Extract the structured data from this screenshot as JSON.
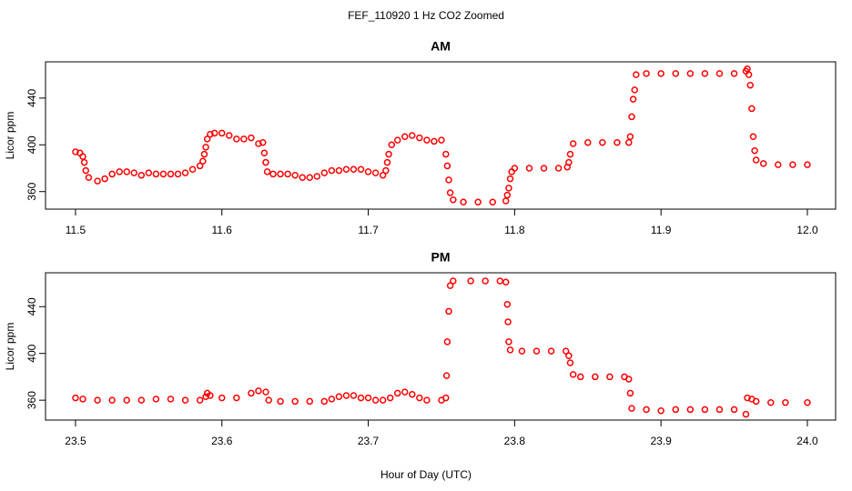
{
  "title": "FEF_110920  1 Hz CO2 Zoomed",
  "xlabel": "Hour of Day (UTC)",
  "chart_data": [
    {
      "type": "scatter",
      "title": "AM",
      "ylabel": "Licor ppm",
      "color": "#ff0000",
      "xlim": [
        11.4795,
        12.0193
      ],
      "ylim": [
        345,
        471
      ],
      "xticks": [
        11.5,
        11.6,
        11.7,
        11.8,
        11.9,
        {
          "value": 12,
          "label": "12.0"
        }
      ],
      "yticks": [
        360,
        400,
        440
      ],
      "x": [
        11.5,
        11.503,
        11.505,
        11.506,
        11.507,
        11.509,
        11.515,
        11.52,
        11.525,
        11.53,
        11.535,
        11.54,
        11.545,
        11.55,
        11.555,
        11.56,
        11.565,
        11.57,
        11.575,
        11.58,
        11.585,
        11.587,
        11.588,
        11.589,
        11.59,
        11.592,
        11.595,
        11.6,
        11.605,
        11.61,
        11.615,
        11.62,
        11.625,
        11.628,
        11.629,
        11.63,
        11.631,
        11.635,
        11.64,
        11.645,
        11.65,
        11.655,
        11.66,
        11.665,
        11.67,
        11.675,
        11.68,
        11.685,
        11.69,
        11.695,
        11.7,
        11.705,
        11.71,
        11.712,
        11.713,
        11.714,
        11.716,
        11.72,
        11.725,
        11.73,
        11.735,
        11.74,
        11.745,
        11.75,
        11.753,
        11.754,
        11.755,
        11.756,
        11.758,
        11.765,
        11.775,
        11.785,
        11.794,
        11.795,
        11.796,
        11.797,
        11.798,
        11.8,
        11.81,
        11.82,
        11.83,
        11.836,
        11.837,
        11.838,
        11.84,
        11.85,
        11.86,
        11.87,
        11.878,
        11.879,
        11.88,
        11.881,
        11.882,
        11.883,
        11.89,
        11.9,
        11.91,
        11.92,
        11.93,
        11.94,
        11.95,
        11.958,
        11.959,
        11.96,
        11.961,
        11.962,
        11.963,
        11.964,
        11.965,
        11.97,
        11.98,
        11.99,
        12.0
      ],
      "values": [
        394,
        393,
        390,
        385,
        378,
        372,
        369,
        371,
        375,
        377,
        377,
        376,
        374,
        376,
        375,
        375,
        375,
        375,
        376,
        379,
        382,
        386,
        392,
        398,
        405,
        409,
        410,
        410,
        408,
        405,
        405,
        406,
        401,
        402,
        393,
        385,
        377,
        375,
        375,
        375,
        374,
        372,
        372,
        373,
        376,
        378,
        378,
        379,
        379,
        379,
        377,
        376,
        374,
        378,
        385,
        392,
        400,
        404,
        407,
        408,
        406,
        404,
        403,
        404,
        392,
        382,
        370,
        359,
        353,
        351,
        351,
        351,
        352,
        357,
        363,
        371,
        377,
        380,
        380,
        380,
        380,
        381,
        385,
        392,
        401,
        402,
        402,
        402,
        402,
        407,
        424,
        439,
        447,
        460,
        461,
        461,
        461,
        461,
        461,
        461,
        461,
        463,
        465,
        460,
        451,
        431,
        407,
        395,
        387,
        384,
        383,
        383,
        383
      ]
    },
    {
      "type": "scatter",
      "title": "PM",
      "ylabel": "Licor ppm",
      "color": "#ff0000",
      "xlim": [
        23.4795,
        24.0193
      ],
      "ylim": [
        343,
        469
      ],
      "xticks": [
        23.5,
        23.6,
        23.7,
        23.8,
        23.9,
        {
          "value": 24,
          "label": "24.0"
        }
      ],
      "yticks": [
        360,
        400,
        440
      ],
      "x": [
        23.5,
        23.505,
        23.515,
        23.525,
        23.535,
        23.545,
        23.555,
        23.565,
        23.575,
        23.585,
        23.589,
        23.59,
        23.592,
        23.6,
        23.61,
        23.62,
        23.625,
        23.63,
        23.632,
        23.64,
        23.65,
        23.66,
        23.67,
        23.675,
        23.68,
        23.685,
        23.69,
        23.695,
        23.7,
        23.705,
        23.71,
        23.715,
        23.72,
        23.725,
        23.73,
        23.735,
        23.74,
        23.75,
        23.753,
        23.7535,
        23.754,
        23.755,
        23.756,
        23.758,
        23.77,
        23.78,
        23.79,
        23.794,
        23.795,
        23.7955,
        23.796,
        23.797,
        23.805,
        23.815,
        23.825,
        23.835,
        23.837,
        23.838,
        23.84,
        23.845,
        23.855,
        23.865,
        23.875,
        23.878,
        23.879,
        23.88,
        23.89,
        23.9,
        23.91,
        23.92,
        23.93,
        23.94,
        23.95,
        23.958,
        23.959,
        23.962,
        23.965,
        23.975,
        23.985,
        24.0
      ],
      "values": [
        362,
        361,
        360,
        360,
        360,
        360,
        361,
        361,
        360,
        360,
        363,
        366,
        364,
        362,
        362,
        366,
        368,
        367,
        360,
        359,
        359,
        359,
        359,
        361,
        363,
        364,
        364,
        362,
        362,
        360,
        360,
        362,
        366,
        367,
        365,
        362,
        360,
        360,
        362,
        381,
        410,
        436,
        458,
        462,
        462,
        462,
        462,
        461,
        442,
        427,
        410,
        403,
        402,
        402,
        402,
        402,
        398,
        392,
        382,
        380,
        380,
        380,
        380,
        378,
        366,
        353,
        352,
        351,
        352,
        352,
        352,
        352,
        352,
        348,
        362,
        361,
        359,
        358,
        358,
        358
      ]
    }
  ]
}
